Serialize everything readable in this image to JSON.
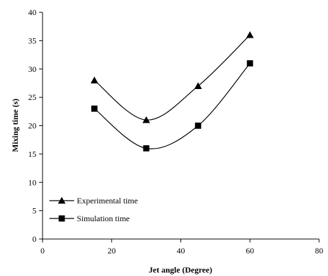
{
  "chart_data": {
    "type": "line",
    "title": "",
    "xlabel": "Jet angle (Degree)",
    "ylabel": "Mixing time (s)",
    "xlim": [
      0,
      80
    ],
    "ylim": [
      0,
      40
    ],
    "xticks": [
      0,
      20,
      40,
      60,
      80
    ],
    "yticks": [
      0,
      5,
      10,
      15,
      20,
      25,
      30,
      35,
      40
    ],
    "grid": false,
    "legend_position": "bottom-left",
    "series": [
      {
        "name": "Experimental time",
        "marker": "triangle",
        "color": "#000000",
        "x": [
          15,
          30,
          45,
          60
        ],
        "y": [
          28,
          21,
          27,
          36
        ]
      },
      {
        "name": "Simulation time",
        "marker": "square",
        "color": "#000000",
        "x": [
          15,
          30,
          45,
          60
        ],
        "y": [
          23,
          16,
          20,
          31
        ]
      }
    ]
  }
}
